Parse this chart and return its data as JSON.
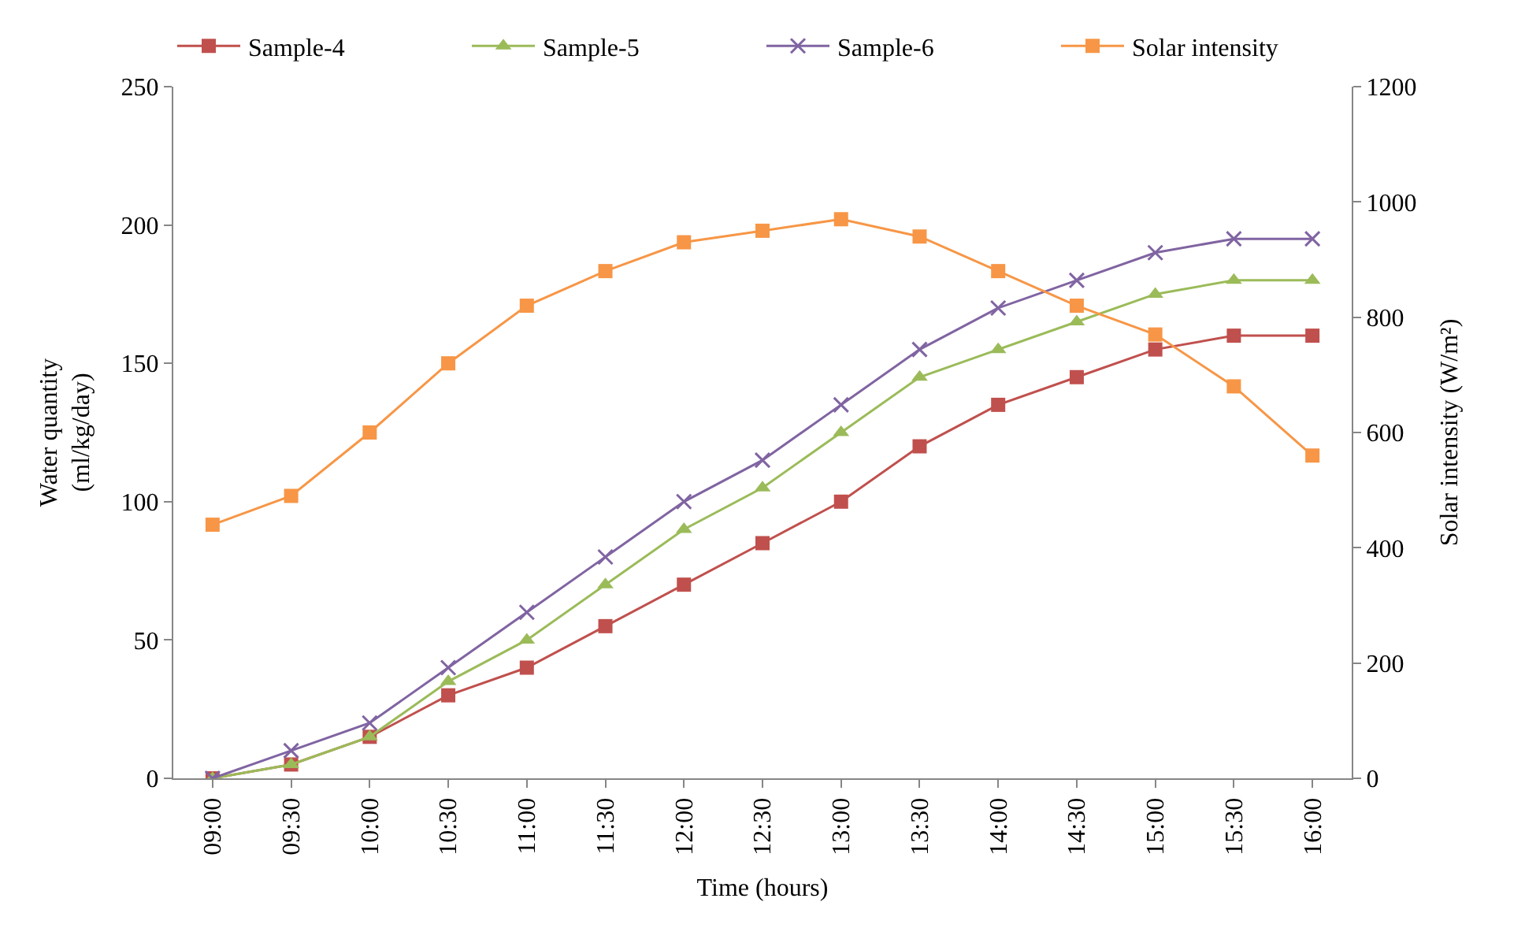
{
  "chart_data": {
    "type": "line",
    "xlabel": "Time (hours)",
    "ylabel": "Water quantity\n(ml/kg/day)",
    "y2label": "Solar intensity (W/m²)",
    "categories": [
      "09:00",
      "09:30",
      "10:00",
      "10:30",
      "11:00",
      "11:30",
      "12:00",
      "12:30",
      "13:00",
      "13:30",
      "14:00",
      "14:30",
      "15:00",
      "15:30",
      "16:00"
    ],
    "series": [
      {
        "name": "Sample-4",
        "color": "#c0504d",
        "marker": "square",
        "values": [
          0,
          5,
          15,
          30,
          40,
          55,
          70,
          85,
          100,
          120,
          135,
          145,
          155,
          160,
          160
        ]
      },
      {
        "name": "Sample-5",
        "color": "#9bbb59",
        "marker": "triangle",
        "values": [
          0,
          5,
          15,
          35,
          50,
          70,
          90,
          105,
          125,
          145,
          155,
          165,
          175,
          180,
          180
        ]
      },
      {
        "name": "Sample-6",
        "color": "#8064a2",
        "marker": "cross",
        "values": [
          0,
          10,
          20,
          40,
          60,
          80,
          100,
          115,
          135,
          155,
          170,
          180,
          190,
          195,
          195
        ]
      },
      {
        "name": "Solar intensity",
        "color": "#f79646",
        "marker": "square",
        "axis": "y2",
        "values": [
          440,
          490,
          600,
          720,
          820,
          880,
          930,
          950,
          970,
          940,
          880,
          820,
          770,
          680,
          560
        ]
      }
    ],
    "ylim": [
      0,
      250
    ],
    "yticks": [
      0,
      50,
      100,
      150,
      200,
      250
    ],
    "y2lim": [
      0,
      1200
    ],
    "y2ticks": [
      0,
      200,
      400,
      600,
      800,
      1000,
      1200
    ],
    "legend": "top"
  }
}
